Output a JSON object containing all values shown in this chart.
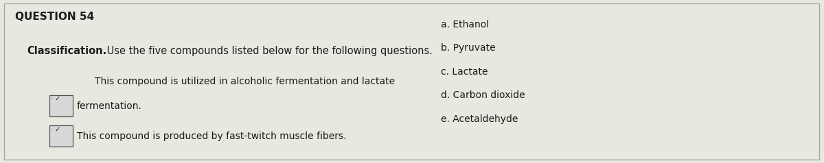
{
  "title": "QUESTION 54",
  "subtitle_bold": "Classification.",
  "subtitle_normal": " Use the five compounds listed below for the following questions.",
  "bg_color": "#e8e8e0",
  "text_color": "#1a1a1a",
  "question1_line1": "This compound is utilized in alcoholic fermentation and lactate",
  "question1_line2": "fermentation.",
  "question2_text": "This compound is produced by fast-twitch muscle fibers.",
  "compounds": [
    "a. Ethanol",
    "b. Pyruvate",
    "c. Lactate",
    "d. Carbon dioxide",
    "e. Acetaldehyde"
  ],
  "border_color": "#aaaaaa",
  "dropdown_edge": "#555555",
  "dropdown_face": "#d8d8d8",
  "fig_width": 12.0,
  "fig_height": 2.38,
  "dpi": 100
}
